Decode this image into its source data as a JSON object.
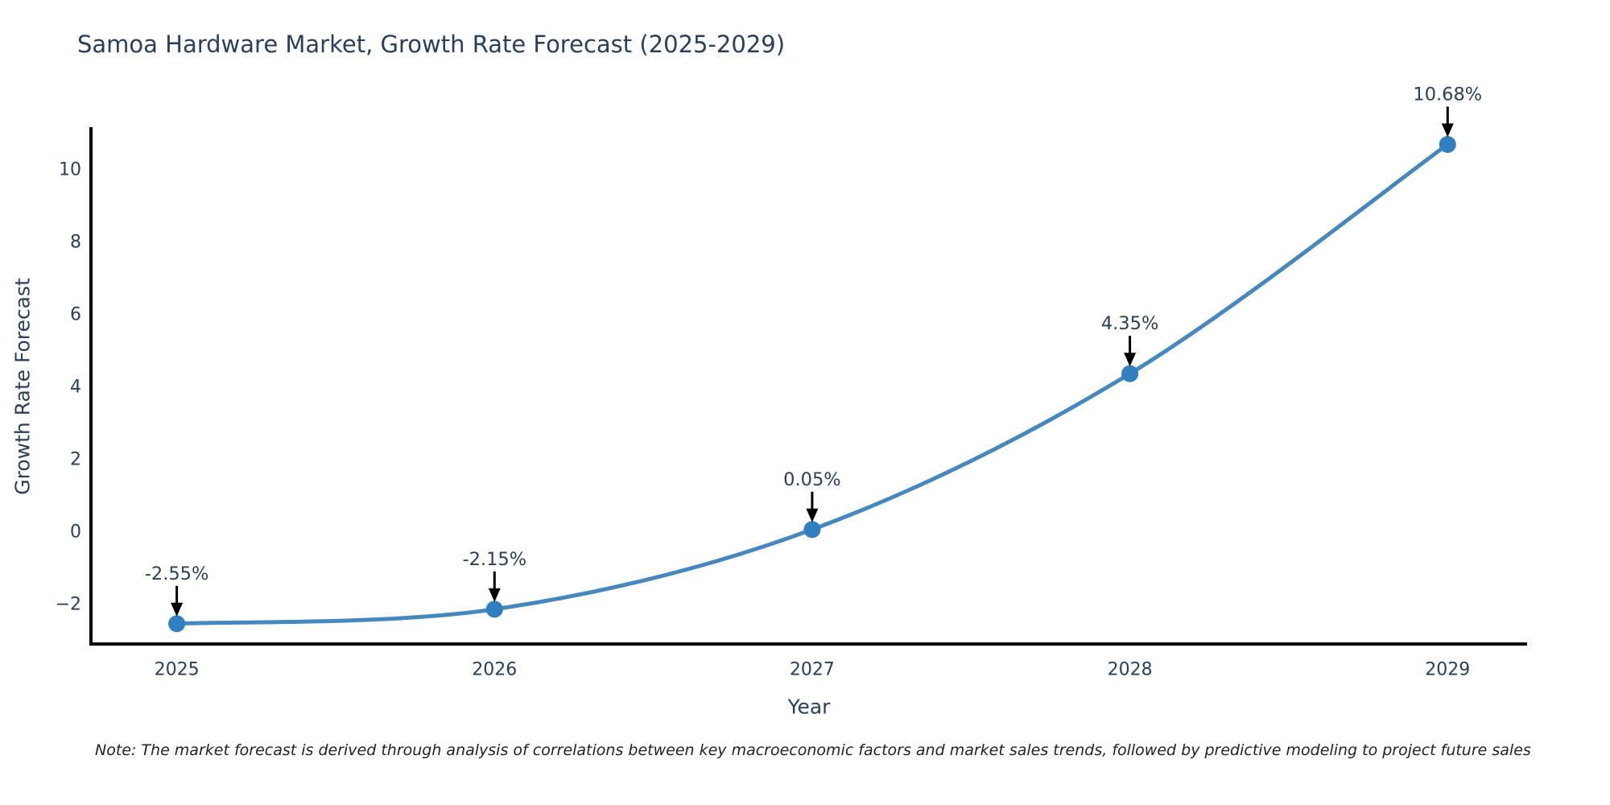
{
  "title": "Samoa Hardware Market, Growth Rate Forecast (2025-2029)",
  "note": "Note: The market forecast is derived through analysis of correlations between key macroeconomic factors and market sales trends, followed by predictive modeling to project future sales",
  "chart_data": {
    "type": "line",
    "title": "Samoa Hardware Market, Growth Rate Forecast (2025-2029)",
    "xlabel": "Year",
    "ylabel": "Growth Rate Forecast",
    "x": [
      2025,
      2026,
      2027,
      2028,
      2029
    ],
    "series": [
      {
        "name": "Growth Rate Forecast",
        "values": [
          -2.55,
          -2.15,
          0.05,
          4.35,
          10.68
        ]
      }
    ],
    "point_labels": [
      "-2.55%",
      "-2.15%",
      "0.05%",
      "4.35%",
      "10.68%"
    ],
    "line_shape": "spline",
    "show_markers": true,
    "annotation_arrows": true,
    "xlim": [
      2024.73,
      2029.25
    ],
    "ylim": [
      -3.11,
      11.11
    ],
    "x_ticks": [
      2025,
      2026,
      2027,
      2028,
      2029
    ],
    "x_tick_labels": [
      "2025",
      "2026",
      "2027",
      "2028",
      "2029"
    ],
    "y_ticks": [
      -2,
      0,
      2,
      4,
      6,
      8,
      10
    ],
    "y_tick_labels": [
      "−2",
      "0",
      "2",
      "4",
      "6",
      "8",
      "10"
    ],
    "grid": false,
    "legend": "none",
    "colors": {
      "line": "#4588bf",
      "marker": "#2f7fc1",
      "axis_line": "#000000",
      "tick_label": "#2a3f5f",
      "title": "#2a3f5f",
      "axis_title": "#2a3f5f",
      "annotation_text": "#2a3f5f",
      "annotation_arrow": "#000000",
      "note_text": "#222222"
    }
  }
}
